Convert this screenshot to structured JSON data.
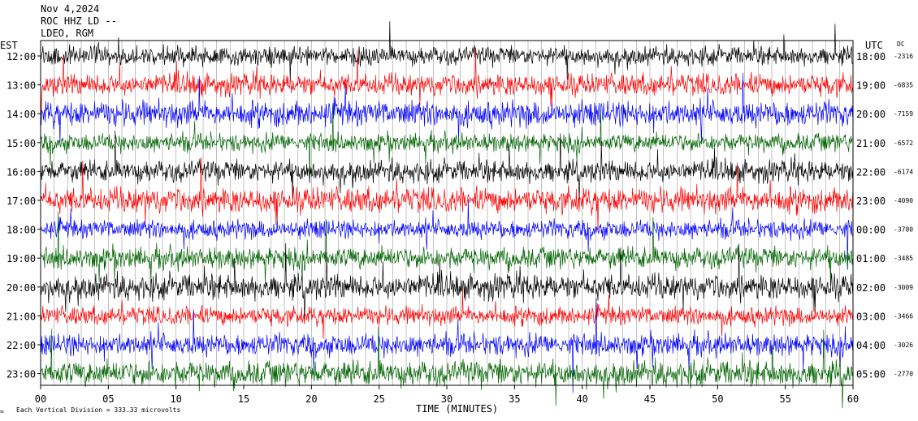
{
  "chart_data": {
    "type": "line",
    "header": {
      "date": "Nov 4,2024",
      "station": "ROC HHZ LD --",
      "network": "LDEO, RGM"
    },
    "left_axis_label": "EST",
    "right_axis_label": "UTC",
    "dc_label": "DC",
    "xlabel": "TIME (MINUTES)",
    "x_ticks": [
      "00",
      "05",
      "10",
      "15",
      "20",
      "25",
      "30",
      "35",
      "40",
      "45",
      "50",
      "55",
      "60"
    ],
    "xlim": [
      0,
      60
    ],
    "footer": "Each Vertical Division =  333.33 microvolts",
    "trace_colors": [
      "#000000",
      "#ff0000",
      "#0000ff",
      "#006400"
    ],
    "rows": [
      {
        "est": "12:00",
        "utc": "18:00",
        "dc": "-2316",
        "color": "#000000"
      },
      {
        "est": "13:00",
        "utc": "19:00",
        "dc": "-6835",
        "color": "#ff0000"
      },
      {
        "est": "14:00",
        "utc": "20:00",
        "dc": "-7159",
        "color": "#0000ff"
      },
      {
        "est": "15:00",
        "utc": "21:00",
        "dc": "-6572",
        "color": "#006400"
      },
      {
        "est": "16:00",
        "utc": "22:00",
        "dc": "-6174",
        "color": "#000000"
      },
      {
        "est": "17:00",
        "utc": "23:00",
        "dc": "-4090",
        "color": "#ff0000"
      },
      {
        "est": "18:00",
        "utc": "00:00",
        "dc": "-3780",
        "color": "#0000ff"
      },
      {
        "est": "19:00",
        "utc": "01:00",
        "dc": "-3485",
        "color": "#006400"
      },
      {
        "est": "20:00",
        "utc": "02:00",
        "dc": "-3009",
        "color": "#000000"
      },
      {
        "est": "21:00",
        "utc": "03:00",
        "dc": "-3466",
        "color": "#ff0000"
      },
      {
        "est": "22:00",
        "utc": "04:00",
        "dc": "-3026",
        "color": "#0000ff"
      },
      {
        "est": "23:00",
        "utc": "05:00",
        "dc": "-2770",
        "color": "#006400"
      }
    ]
  }
}
